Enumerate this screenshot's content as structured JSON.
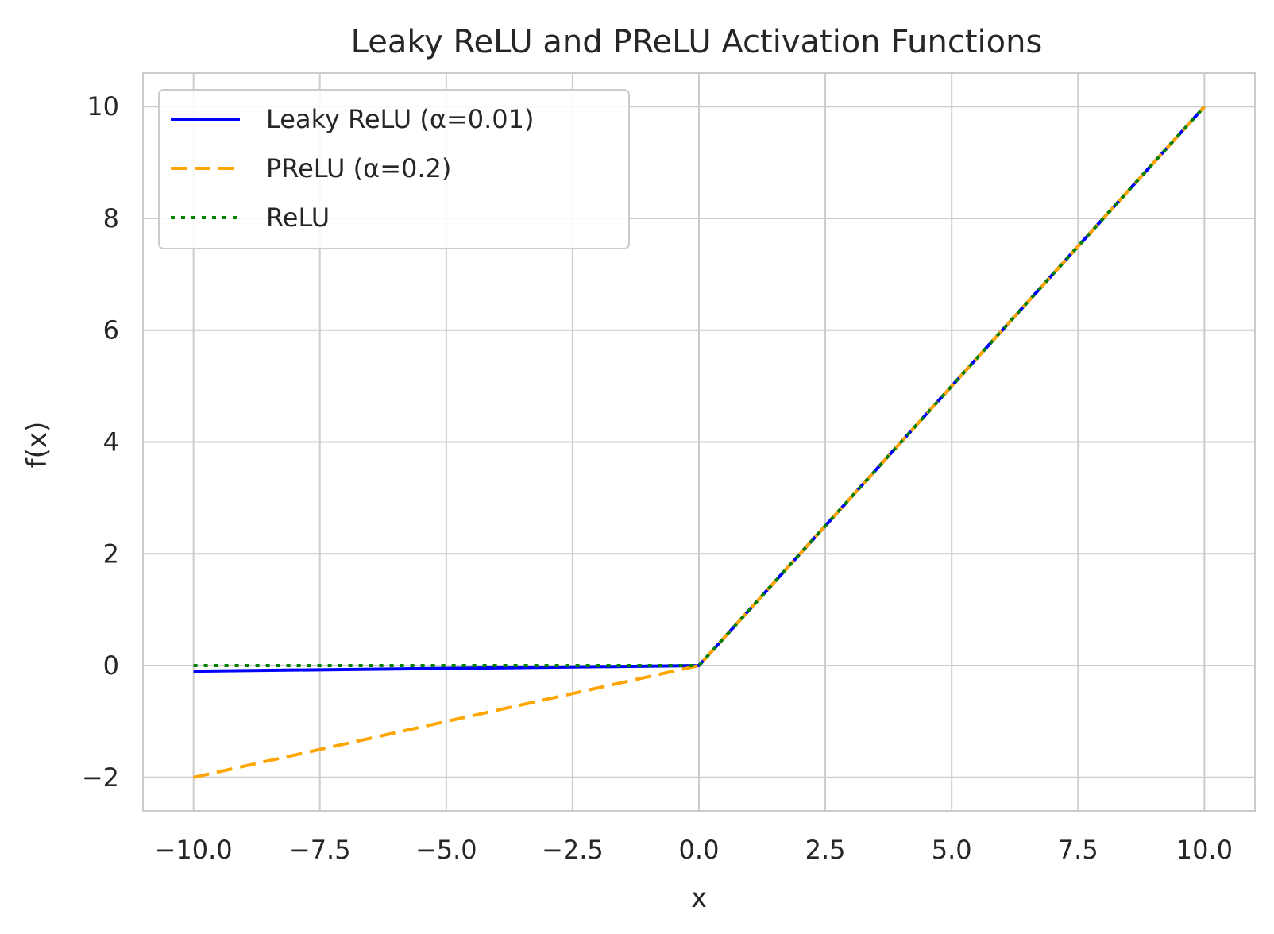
{
  "chart_data": {
    "type": "line",
    "title": "Leaky ReLU and PReLU Activation Functions",
    "xlabel": "x",
    "ylabel": "f(x)",
    "xlim": [
      -11,
      11
    ],
    "ylim": [
      -2.6,
      10.6
    ],
    "grid": true,
    "legend_position": "top-left",
    "x_ticks": [
      -10,
      -7.5,
      -5,
      -2.5,
      0,
      2.5,
      5,
      7.5,
      10
    ],
    "x_tick_labels": [
      "−10.0",
      "−7.5",
      "−5.0",
      "−2.5",
      "0.0",
      "2.5",
      "5.0",
      "7.5",
      "10.0"
    ],
    "y_ticks": [
      -2,
      0,
      2,
      4,
      6,
      8,
      10
    ],
    "y_tick_labels": [
      "−2",
      "0",
      "2",
      "4",
      "6",
      "8",
      "10"
    ],
    "series": [
      {
        "name": "Leaky ReLU (α=0.01)",
        "color": "#0000ff",
        "style": "solid",
        "x": [
          -10,
          0,
          10
        ],
        "y": [
          -0.1,
          0,
          10
        ]
      },
      {
        "name": "PReLU (α=0.2)",
        "color": "#ffa500",
        "style": "dashed",
        "x": [
          -10,
          0,
          10
        ],
        "y": [
          -2,
          0,
          10
        ]
      },
      {
        "name": "ReLU",
        "color": "#008000",
        "style": "dotted",
        "x": [
          -10,
          0,
          10
        ],
        "y": [
          0,
          0,
          10
        ]
      }
    ]
  }
}
